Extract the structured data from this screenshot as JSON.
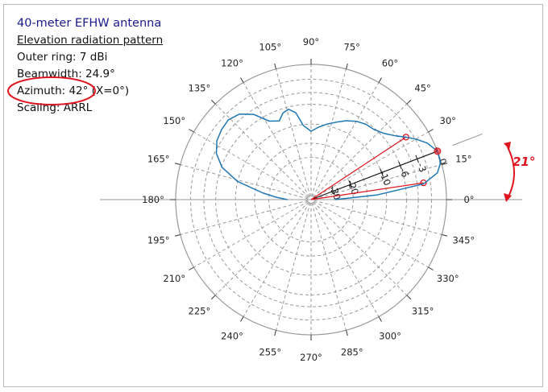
{
  "chart_data": {
    "type": "polar",
    "title": "40-meter EFHW antenna",
    "subtitle": "Elevation radiation pattern",
    "info_lines": [
      "Outer ring: 7 dBi",
      "Beamwidth: 24.9°",
      "Azimuth: 42° (X=0°)",
      "Scaling: ARRL"
    ],
    "angle_labels": [
      "0°",
      "15°",
      "30°",
      "45°",
      "60°",
      "75°",
      "90°",
      "105°",
      "120°",
      "135°",
      "150°",
      "165°",
      "180°",
      "195°",
      "210°",
      "225°",
      "240°",
      "255°",
      "270°",
      "285°",
      "300°",
      "315°",
      "330°",
      "345°"
    ],
    "radial_labels": [
      "0",
      "-3",
      "-6",
      "-10",
      "-20",
      "-30"
    ],
    "radial_values_db": [
      0,
      -3,
      -6,
      -10,
      -20,
      -30
    ],
    "beam_elevation_deg": 21,
    "half_power_points_deg": [
      8.5,
      33.4
    ],
    "tilt_annotation": "21°",
    "pattern": {
      "series_color": "#1f77b4",
      "angle_deg": [
        0,
        4,
        8,
        12,
        16,
        21,
        26,
        30,
        33.4,
        37,
        42,
        48,
        54,
        60,
        66,
        72,
        78,
        84,
        90,
        96,
        100,
        104,
        108,
        112,
        118,
        124,
        130,
        136,
        142,
        148,
        154,
        160,
        166,
        172,
        176,
        180
      ],
      "gain_db": [
        -30,
        -12.4,
        -3,
        -0.8,
        -0.1,
        0,
        -0.8,
        -1.9,
        -3,
        -4.2,
        -5.4,
        -6.2,
        -6.4,
        -6.9,
        -7.7,
        -8.7,
        -9.6,
        -10.6,
        -11.7,
        -10.2,
        -7.3,
        -6.4,
        -6.8,
        -8,
        -7.2,
        -4.7,
        -3.3,
        -2.8,
        -3,
        -3.4,
        -4.3,
        -6.1,
        -9.9,
        -17.4,
        -23,
        -30
      ]
    }
  }
}
